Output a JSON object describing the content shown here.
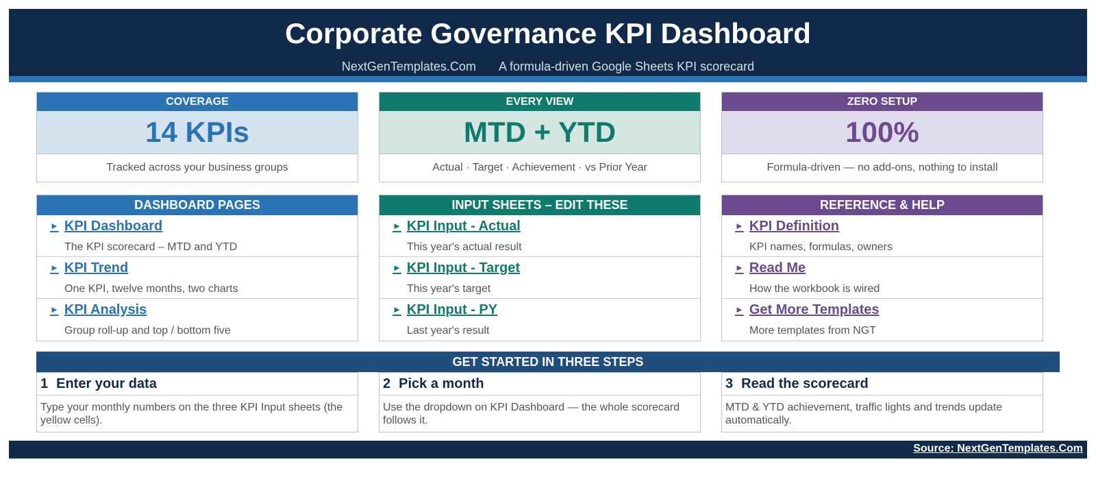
{
  "header": {
    "title": "Corporate Governance KPI Dashboard",
    "site": "NextGenTemplates.Com",
    "tagline": "A formula-driven Google Sheets KPI scorecard"
  },
  "colors": {
    "navy": "#122a49",
    "blue": "#2a74b6",
    "teal": "#0f7b6c",
    "purple": "#6b4a8e"
  },
  "cards": [
    {
      "head": "COVERAGE",
      "value": "14 KPIs",
      "note": "Tracked across your business groups"
    },
    {
      "head": "EVERY VIEW",
      "value": "MTD + YTD",
      "note": "Actual · Target · Achievement · vs Prior Year"
    },
    {
      "head": "ZERO SETUP",
      "value": "100%",
      "note": "Formula-driven — no add-ons, nothing to install"
    }
  ],
  "panels": [
    {
      "head": "DASHBOARD PAGES",
      "links": [
        {
          "label": "KPI Dashboard",
          "desc": "The KPI scorecard – MTD and YTD"
        },
        {
          "label": "KPI Trend",
          "desc": "One KPI, twelve months, two charts"
        },
        {
          "label": "KPI Analysis",
          "desc": "Group roll-up and top / bottom five"
        }
      ]
    },
    {
      "head": "INPUT SHEETS – EDIT THESE",
      "links": [
        {
          "label": "KPI Input - Actual",
          "desc": "This year's actual result"
        },
        {
          "label": "KPI Input - Target",
          "desc": "This year's target"
        },
        {
          "label": "KPI Input - PY",
          "desc": "Last year's result"
        }
      ]
    },
    {
      "head": "REFERENCE & HELP",
      "links": [
        {
          "label": "KPI Definition",
          "desc": "KPI names, formulas, owners"
        },
        {
          "label": "Read Me",
          "desc": "How the workbook is wired"
        },
        {
          "label": "Get More Templates",
          "desc": "More templates from NGT"
        }
      ]
    }
  ],
  "steps_title": "GET STARTED IN THREE STEPS",
  "steps": [
    {
      "num": "1",
      "title": "Enter your data",
      "text": "Type your monthly numbers on the three KPI Input sheets (the yellow cells)."
    },
    {
      "num": "2",
      "title": "Pick a month",
      "text": "Use the dropdown on KPI Dashboard — the whole scorecard follows it."
    },
    {
      "num": "3",
      "title": "Read the scorecard",
      "text": "MTD & YTD achievement, traffic lights and trends update automatically."
    }
  ],
  "footer": {
    "source": "Source: NextGenTemplates.Com"
  },
  "icons": {
    "link_arrow": "triangle-right-icon"
  }
}
